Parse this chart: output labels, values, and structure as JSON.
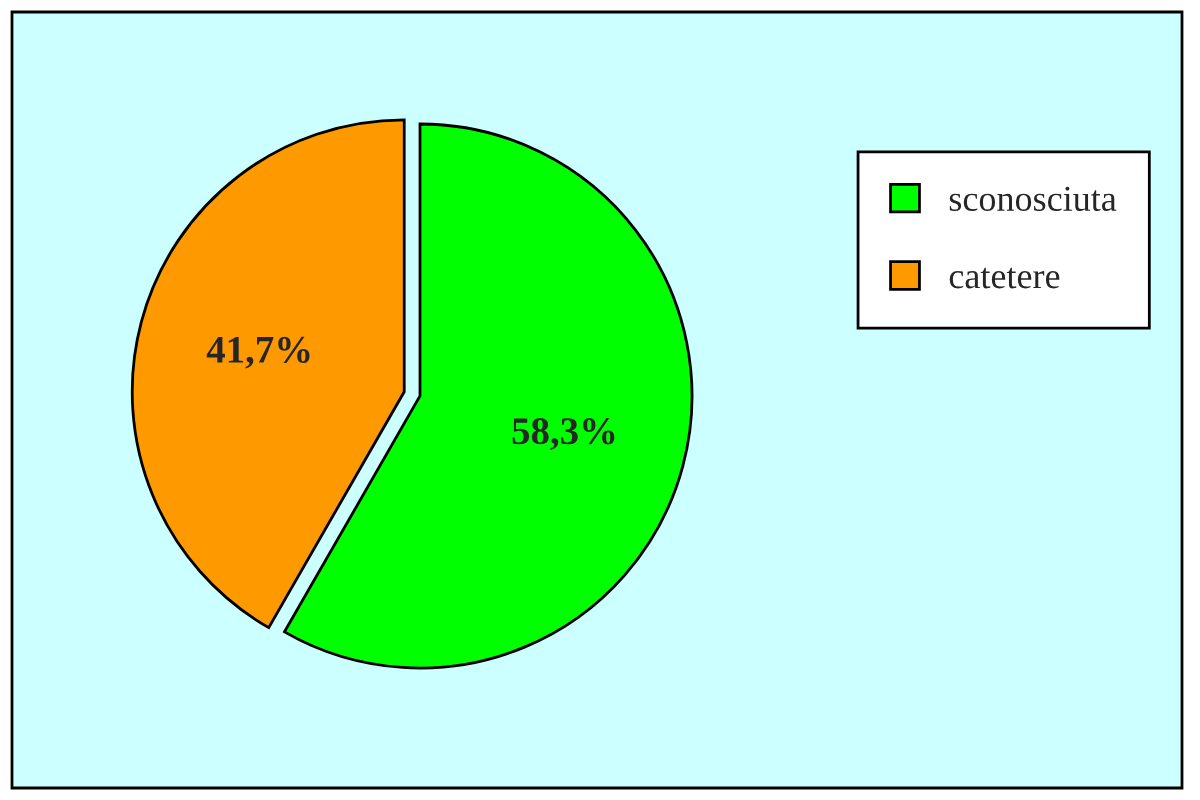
{
  "chart_data": {
    "type": "pie",
    "categories": [
      "sconosciuta",
      "catetere"
    ],
    "values": [
      58.3,
      41.7
    ],
    "colors": [
      "#00ff00",
      "#ff9900"
    ],
    "value_labels": [
      "58,3%",
      "41,7%"
    ],
    "legend": "right"
  }
}
